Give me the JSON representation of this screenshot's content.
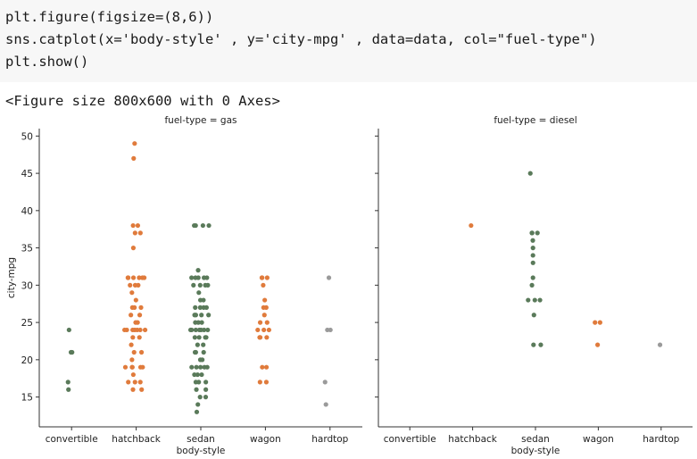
{
  "code": {
    "lines": [
      "plt.figure(figsize=(8,6))",
      "sns.catplot(x='body-style' , y='city-mpg' , data=data, col=\"fuel-type\")",
      "plt.show()"
    ]
  },
  "output": {
    "text": "<Figure size 800x600 with 0 Axes>"
  },
  "chart_data": [
    {
      "type": "scatter",
      "title": "fuel-type = gas",
      "xlabel": "body-style",
      "ylabel": "city-mpg",
      "categories": [
        "convertible",
        "hatchback",
        "sedan",
        "wagon",
        "hardtop"
      ],
      "ylim": [
        11,
        51
      ],
      "yticks": [
        15,
        20,
        25,
        30,
        35,
        40,
        45,
        50
      ],
      "colors": [
        "#5a7a5a",
        "#e07b3c",
        "#5a7a5a",
        "#e07b3c",
        "#9a9a9a"
      ],
      "points": [
        [
          21,
          21,
          24,
          17,
          16
        ],
        [
          49,
          47,
          38,
          38,
          37,
          37,
          35,
          31,
          31,
          31,
          31,
          31,
          31,
          30,
          30,
          30,
          29,
          28,
          27,
          27,
          27,
          26,
          26,
          25,
          25,
          24,
          24,
          24,
          24,
          24,
          24,
          24,
          23,
          23,
          22,
          21,
          21,
          20,
          19,
          19,
          19,
          19,
          19,
          18,
          17,
          17,
          17,
          16,
          16
        ],
        [
          38,
          38,
          38,
          38,
          32,
          31,
          31,
          31,
          31,
          31,
          30,
          30,
          30,
          30,
          29,
          28,
          28,
          27,
          27,
          27,
          27,
          26,
          26,
          26,
          26,
          25,
          25,
          25,
          24,
          24,
          24,
          24,
          24,
          24,
          24,
          23,
          23,
          23,
          23,
          22,
          22,
          21,
          21,
          21,
          20,
          20,
          19,
          19,
          19,
          19,
          19,
          18,
          18,
          18,
          17,
          17,
          17,
          16,
          16,
          15,
          15,
          14,
          13
        ],
        [
          31,
          31,
          31,
          30,
          28,
          27,
          27,
          26,
          25,
          25,
          24,
          24,
          24,
          23,
          23,
          23,
          19,
          19,
          17,
          17
        ],
        [
          31,
          24,
          24,
          17,
          14
        ]
      ]
    },
    {
      "type": "scatter",
      "title": "fuel-type = diesel",
      "xlabel": "body-style",
      "ylabel": "",
      "categories": [
        "convertible",
        "hatchback",
        "sedan",
        "wagon",
        "hardtop"
      ],
      "ylim": [
        11,
        51
      ],
      "colors": [
        "#5a7a5a",
        "#e07b3c",
        "#5a7a5a",
        "#e07b3c",
        "#9a9a9a"
      ],
      "points": [
        [],
        [
          38
        ],
        [
          45,
          37,
          37,
          37,
          36,
          35,
          34,
          33,
          31,
          30,
          28,
          28,
          28,
          26,
          22,
          22
        ],
        [
          25,
          25,
          22
        ],
        [
          22
        ]
      ]
    }
  ]
}
